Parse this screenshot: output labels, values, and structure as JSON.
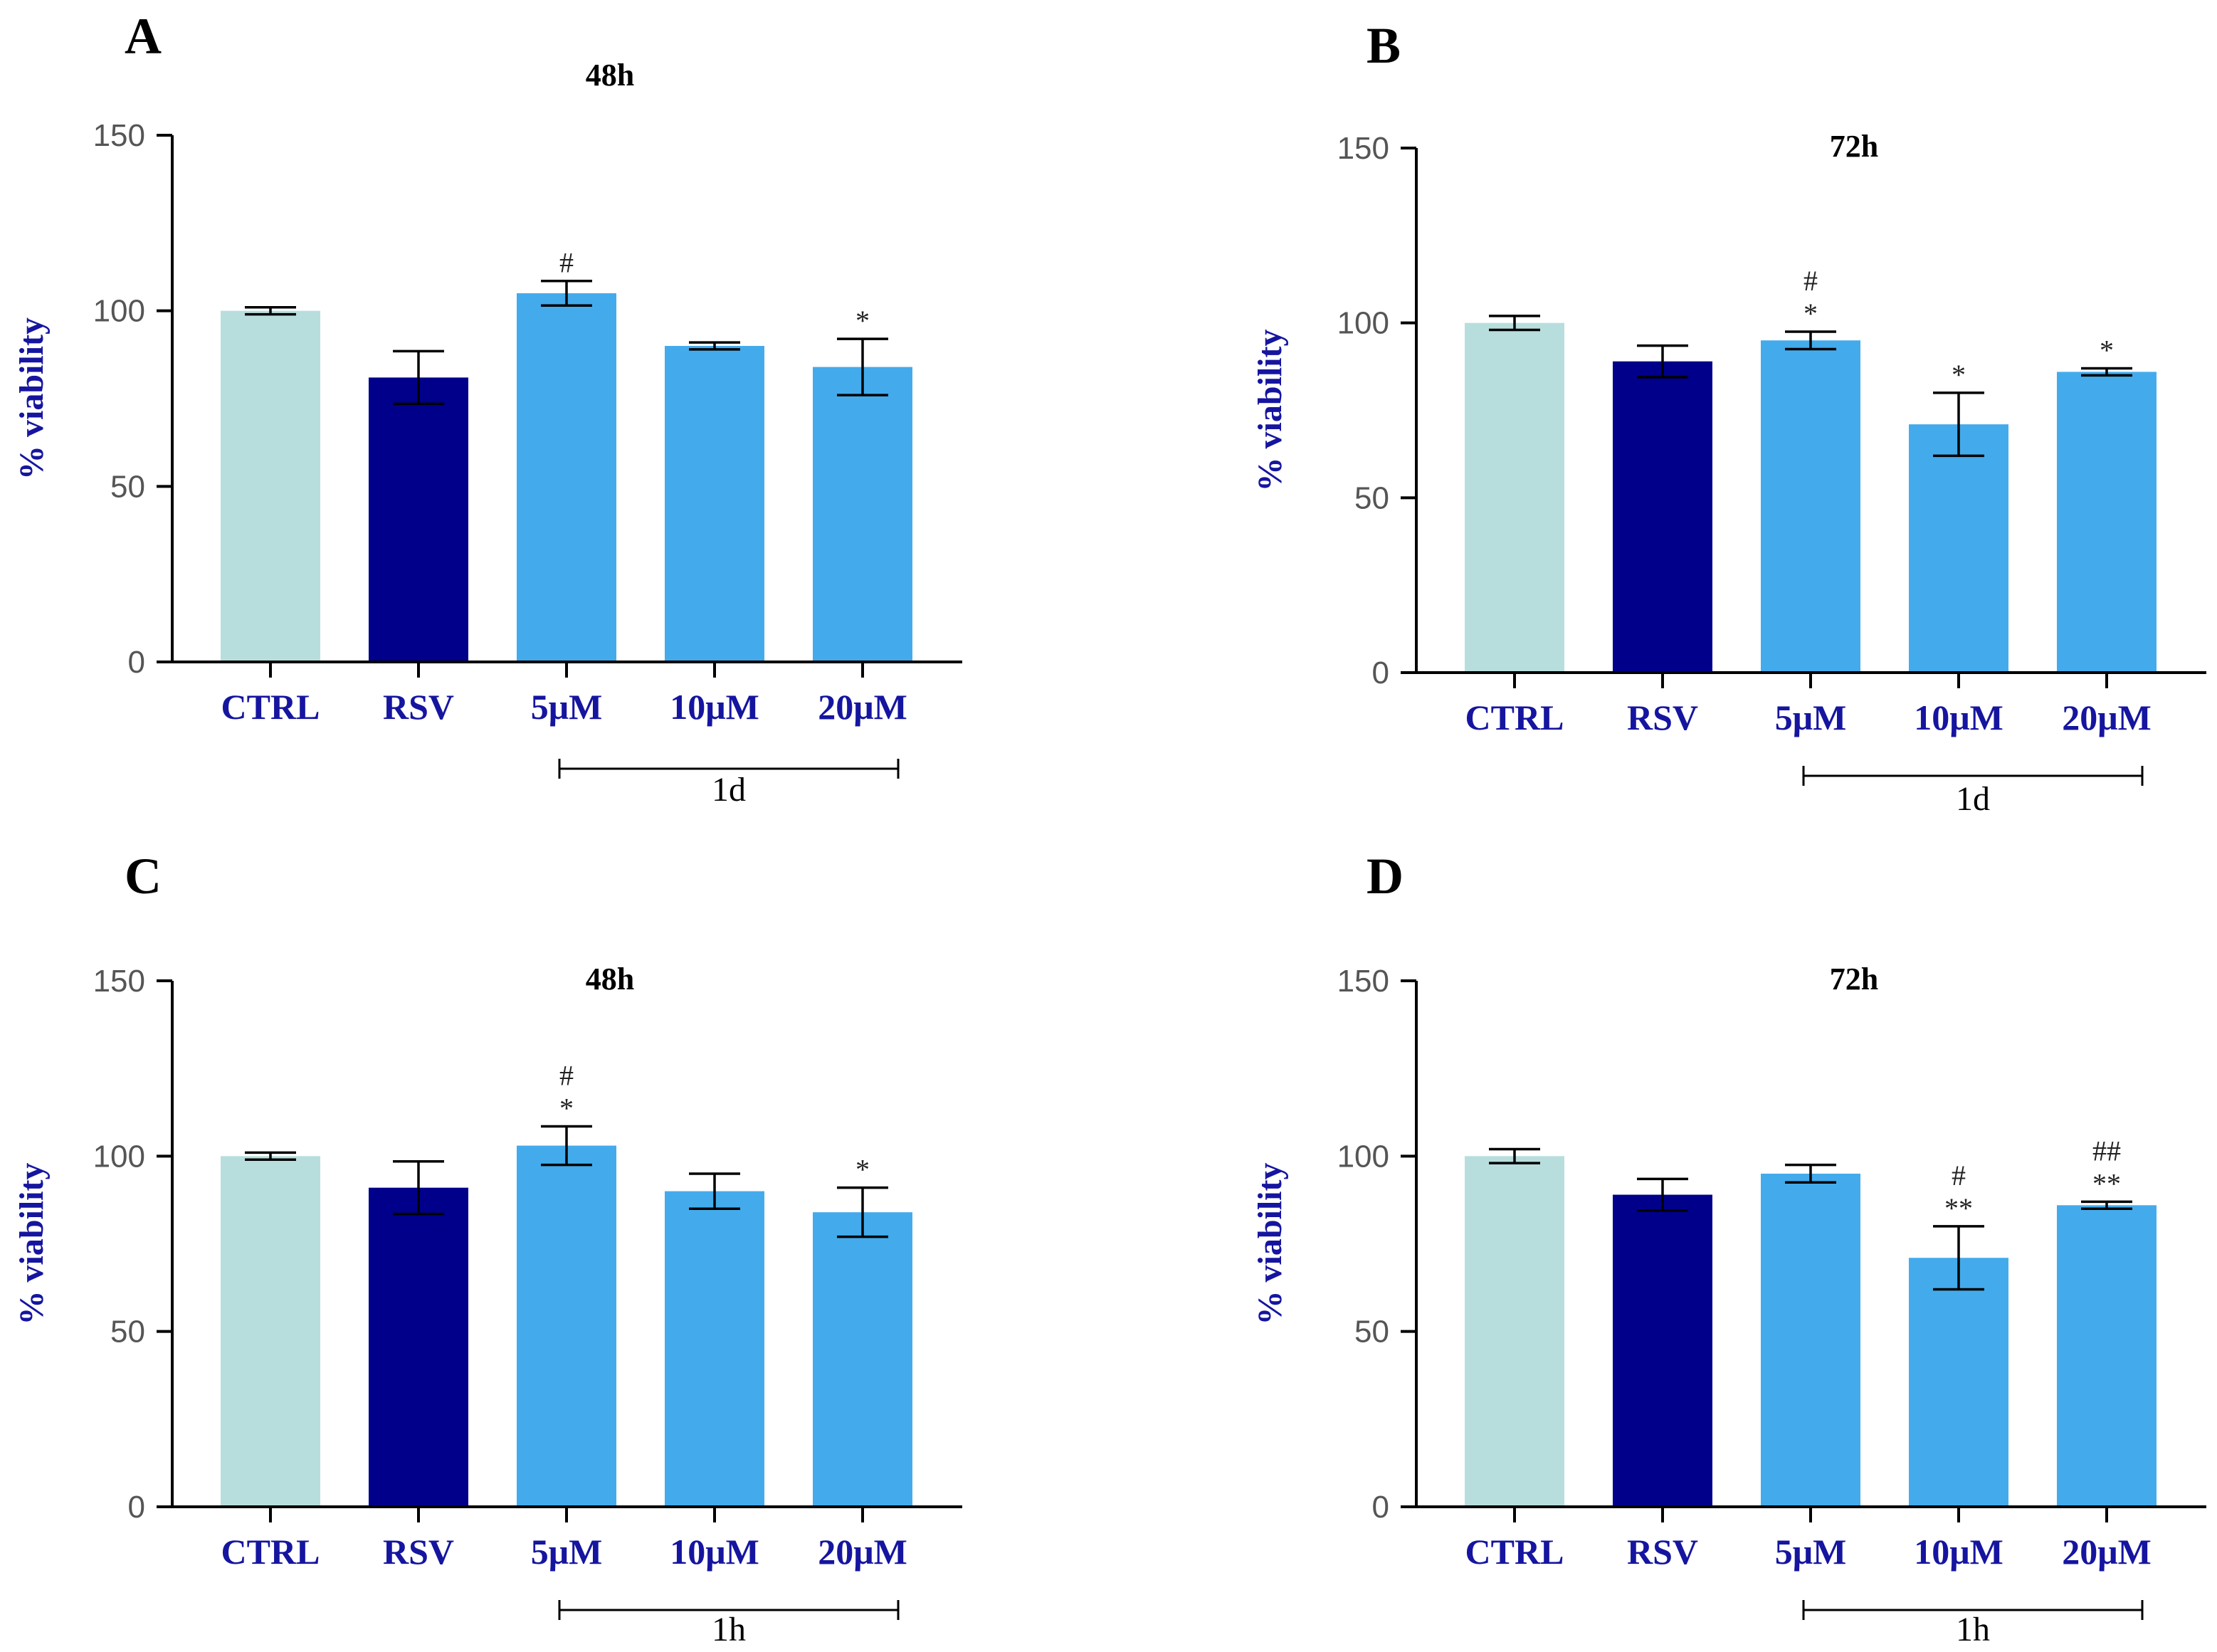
{
  "colors": {
    "ctrl": "#b7dedd",
    "rsv": "#00008b",
    "treatment": "#43abec",
    "label_blue": "#1515a0",
    "axis": "#000000"
  },
  "chart_data": [
    {
      "panel": "A",
      "type": "bar",
      "title": "48h",
      "ylabel": "% viability",
      "xlabel": "",
      "ylim": [
        0,
        150
      ],
      "yticks": [
        0,
        50,
        100,
        150
      ],
      "categories": [
        "CTRL",
        "RSV",
        "5μM",
        "10μM",
        "20μM"
      ],
      "values": [
        100,
        81,
        105,
        90,
        84
      ],
      "errors": [
        1,
        7.5,
        3.5,
        1,
        8
      ],
      "significance": [
        "",
        "",
        "#",
        "",
        "*"
      ],
      "bracket": {
        "from": 2,
        "to": 4,
        "label": "1d"
      }
    },
    {
      "panel": "B",
      "type": "bar",
      "title": "72h",
      "ylabel": "% viability",
      "xlabel": "",
      "ylim": [
        0,
        150
      ],
      "yticks": [
        0,
        50,
        100,
        150
      ],
      "categories": [
        "CTRL",
        "RSV",
        "5μM",
        "10μM",
        "20μM"
      ],
      "values": [
        100,
        89,
        95,
        71,
        86
      ],
      "errors": [
        2,
        4.5,
        2.5,
        9,
        1
      ],
      "significance": [
        "",
        "",
        "#\n*",
        "*",
        "*"
      ],
      "bracket": {
        "from": 2,
        "to": 4,
        "label": "1d"
      }
    },
    {
      "panel": "C",
      "type": "bar",
      "title": "48h",
      "ylabel": "% viability",
      "xlabel": "",
      "ylim": [
        0,
        150
      ],
      "yticks": [
        0,
        50,
        100,
        150
      ],
      "categories": [
        "CTRL",
        "RSV",
        "5μM",
        "10μM",
        "20μM"
      ],
      "values": [
        100,
        91,
        103,
        90,
        84
      ],
      "errors": [
        1,
        7.5,
        5.5,
        5,
        7
      ],
      "significance": [
        "",
        "",
        "#\n*",
        "",
        "*"
      ],
      "bracket": {
        "from": 2,
        "to": 4,
        "label": "1h"
      }
    },
    {
      "panel": "D",
      "type": "bar",
      "title": "72h",
      "ylabel": "% viability",
      "xlabel": "",
      "ylim": [
        0,
        150
      ],
      "yticks": [
        0,
        50,
        100,
        150
      ],
      "categories": [
        "CTRL",
        "RSV",
        "5μM",
        "10μM",
        "20μM"
      ],
      "values": [
        100,
        89,
        95,
        71,
        86
      ],
      "errors": [
        2,
        4.5,
        2.5,
        9,
        1
      ],
      "significance": [
        "",
        "",
        "",
        "#\n**",
        "##\n**"
      ],
      "bracket": {
        "from": 2,
        "to": 4,
        "label": "1h"
      }
    }
  ]
}
